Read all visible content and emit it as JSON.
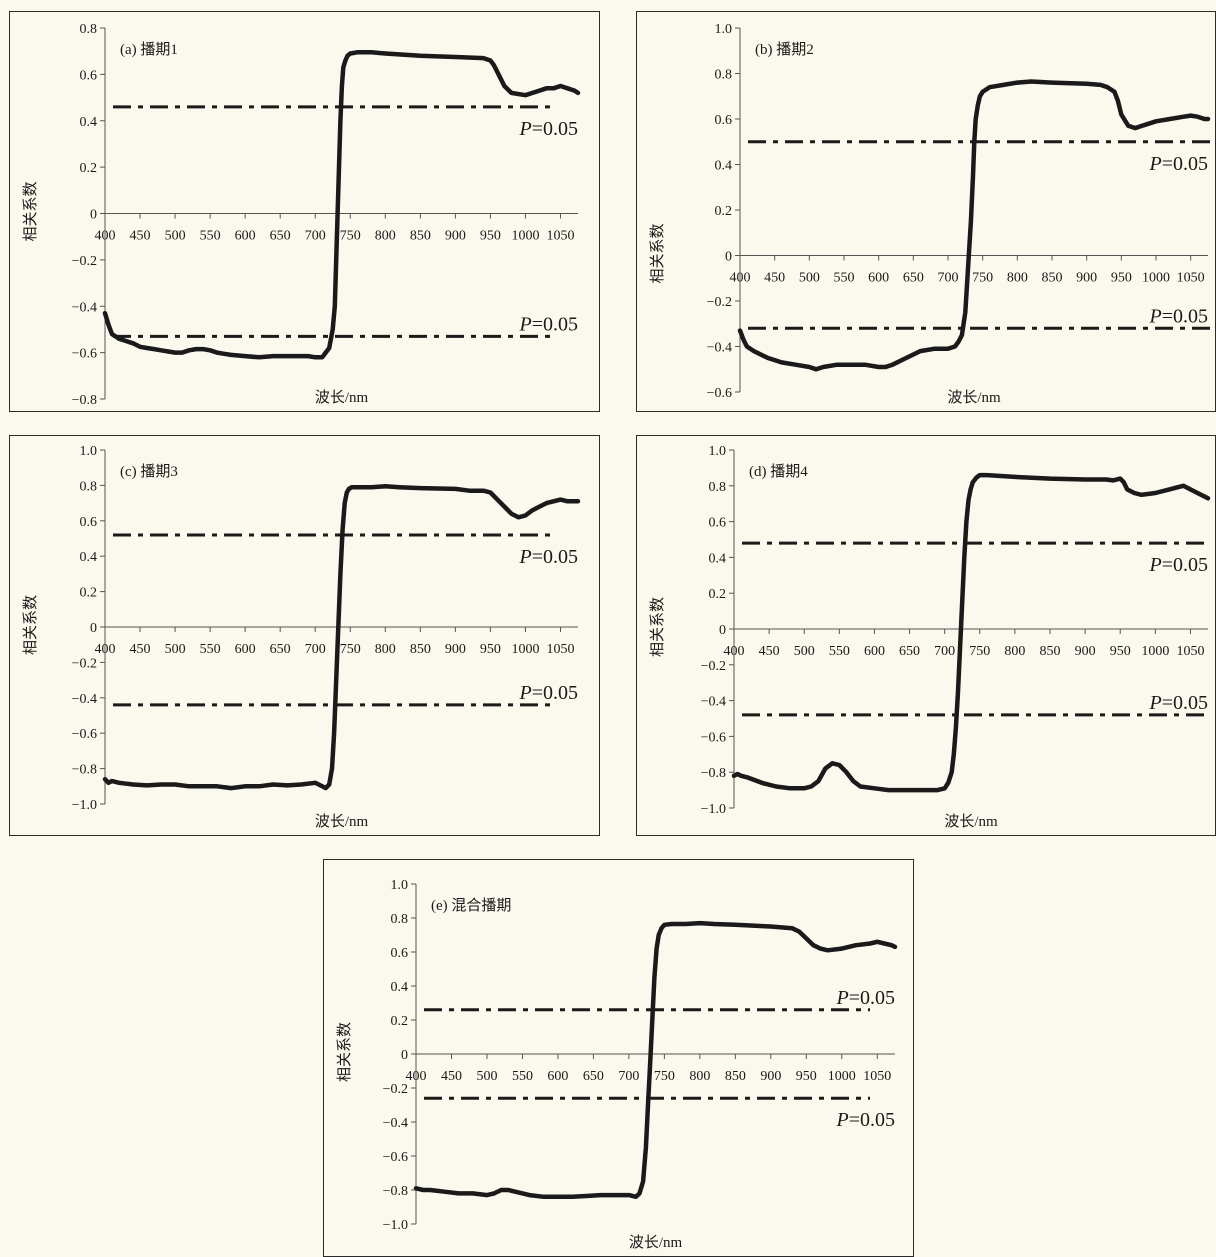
{
  "colors": {
    "background": "#fbf8ed",
    "panel_fill": "#fbf8ed",
    "frame": "#2b2b2b",
    "curve": "#1a1a1a",
    "axis": "#555555"
  },
  "chart_data": [
    {
      "type": "line",
      "panel_label": "(a) 播期1",
      "xlabel": "波长/nm",
      "ylabel": "相关系数",
      "xlim": [
        400,
        1075
      ],
      "ylim": [
        -0.8,
        0.8
      ],
      "x_ticks": [
        "400",
        "450",
        "500",
        "550",
        "600",
        "650",
        "700",
        "750",
        "800",
        "850",
        "900",
        "950",
        "1000",
        "1050"
      ],
      "y_ticks": [
        "0.8",
        "0.6",
        "0.4",
        "0.2",
        "0",
        "−0.2",
        "−0.4",
        "−0.6",
        "−0.8"
      ],
      "y_tick_values": [
        0.8,
        0.6,
        0.4,
        0.2,
        0,
        -0.2,
        -0.4,
        -0.6,
        -0.8
      ],
      "grid": false,
      "series": [
        {
          "x": [
            400,
            405,
            410,
            415,
            420,
            430,
            440,
            450,
            460,
            470,
            480,
            490,
            500,
            510,
            520,
            530,
            540,
            550,
            560,
            570,
            580,
            600,
            620,
            640,
            660,
            680,
            690,
            700,
            710,
            715,
            720,
            725,
            728,
            730,
            732,
            734,
            736,
            738,
            740,
            743,
            746,
            750,
            760,
            780,
            800,
            850,
            900,
            940,
            950,
            955,
            960,
            970,
            980,
            1000,
            1010,
            1020,
            1030,
            1040,
            1050,
            1060,
            1070,
            1075
          ],
          "y": [
            -0.43,
            -0.48,
            -0.52,
            -0.53,
            -0.54,
            -0.55,
            -0.56,
            -0.575,
            -0.58,
            -0.585,
            -0.59,
            -0.595,
            -0.6,
            -0.6,
            -0.59,
            -0.585,
            -0.585,
            -0.59,
            -0.6,
            -0.605,
            -0.61,
            -0.615,
            -0.62,
            -0.615,
            -0.615,
            -0.615,
            -0.615,
            -0.62,
            -0.62,
            -0.6,
            -0.58,
            -0.5,
            -0.4,
            -0.2,
            0.0,
            0.2,
            0.4,
            0.55,
            0.63,
            0.66,
            0.68,
            0.69,
            0.695,
            0.695,
            0.69,
            0.68,
            0.675,
            0.67,
            0.66,
            0.64,
            0.61,
            0.55,
            0.52,
            0.51,
            0.52,
            0.53,
            0.54,
            0.54,
            0.55,
            0.54,
            0.53,
            0.52
          ]
        }
      ],
      "thresholds": [
        {
          "value": 0.46,
          "label_prefix": "P",
          "label_suffix": "=0.05",
          "label_pos": "below"
        },
        {
          "value": -0.53,
          "label_prefix": "P",
          "label_suffix": "=0.05",
          "label_pos": "above"
        }
      ]
    },
    {
      "type": "line",
      "panel_label": "(b) 播期2",
      "xlabel": "波长/nm",
      "ylabel": "相关系数",
      "xlim": [
        400,
        1075
      ],
      "ylim": [
        -0.6,
        1.0
      ],
      "x_ticks": [
        "400",
        "450",
        "500",
        "550",
        "600",
        "650",
        "700",
        "750",
        "800",
        "850",
        "900",
        "950",
        "1000",
        "1050"
      ],
      "y_ticks": [
        "1.0",
        "0.8",
        "0.6",
        "0.4",
        "0.2",
        "0",
        "−0.2",
        "−0.4",
        "−0.6"
      ],
      "y_tick_values": [
        1.0,
        0.8,
        0.6,
        0.4,
        0.2,
        0,
        -0.2,
        -0.4,
        -0.6
      ],
      "grid": false,
      "series": [
        {
          "x": [
            400,
            405,
            410,
            420,
            440,
            460,
            480,
            500,
            510,
            520,
            540,
            560,
            580,
            600,
            610,
            620,
            640,
            660,
            680,
            700,
            710,
            715,
            720,
            725,
            728,
            730,
            733,
            736,
            738,
            740,
            743,
            746,
            750,
            760,
            780,
            800,
            820,
            850,
            900,
            920,
            930,
            940,
            945,
            950,
            960,
            970,
            980,
            1000,
            1020,
            1040,
            1050,
            1060,
            1070,
            1075
          ],
          "y": [
            -0.33,
            -0.37,
            -0.4,
            -0.42,
            -0.45,
            -0.47,
            -0.48,
            -0.49,
            -0.5,
            -0.49,
            -0.48,
            -0.48,
            -0.48,
            -0.49,
            -0.49,
            -0.48,
            -0.45,
            -0.42,
            -0.41,
            -0.41,
            -0.4,
            -0.38,
            -0.35,
            -0.25,
            -0.1,
            0.0,
            0.15,
            0.35,
            0.5,
            0.6,
            0.66,
            0.7,
            0.72,
            0.74,
            0.75,
            0.76,
            0.765,
            0.76,
            0.755,
            0.75,
            0.74,
            0.72,
            0.68,
            0.62,
            0.57,
            0.56,
            0.57,
            0.59,
            0.6,
            0.61,
            0.615,
            0.61,
            0.6,
            0.6
          ]
        }
      ],
      "thresholds": [
        {
          "value": 0.5,
          "label_prefix": "P",
          "label_suffix": "=0.05",
          "label_pos": "below"
        },
        {
          "value": -0.32,
          "label_prefix": "P",
          "label_suffix": "=0.05",
          "label_pos": "above"
        }
      ]
    },
    {
      "type": "line",
      "panel_label": "(c) 播期3",
      "xlabel": "波长/nm",
      "ylabel": "相关系数",
      "xlim": [
        400,
        1075
      ],
      "ylim": [
        -1.0,
        1.0
      ],
      "x_ticks": [
        "400",
        "450",
        "500",
        "550",
        "600",
        "650",
        "700",
        "750",
        "800",
        "850",
        "900",
        "950",
        "1000",
        "1050"
      ],
      "y_ticks": [
        "1.0",
        "0.8",
        "0.6",
        "0.4",
        "0.2",
        "0",
        "−0.2",
        "−0.4",
        "−0.6",
        "−0.8",
        "−1.0"
      ],
      "y_tick_values": [
        1.0,
        0.8,
        0.6,
        0.4,
        0.2,
        0,
        -0.2,
        -0.4,
        -0.6,
        -0.8,
        -1.0
      ],
      "grid": false,
      "series": [
        {
          "x": [
            400,
            405,
            410,
            420,
            440,
            460,
            480,
            500,
            520,
            540,
            560,
            580,
            600,
            620,
            640,
            660,
            680,
            700,
            710,
            715,
            720,
            724,
            727,
            730,
            733,
            736,
            739,
            742,
            745,
            748,
            752,
            760,
            780,
            800,
            820,
            850,
            900,
            920,
            940,
            950,
            960,
            970,
            980,
            990,
            1000,
            1010,
            1020,
            1030,
            1040,
            1050,
            1060,
            1070,
            1075
          ],
          "y": [
            -0.86,
            -0.88,
            -0.87,
            -0.88,
            -0.89,
            -0.895,
            -0.89,
            -0.89,
            -0.9,
            -0.9,
            -0.9,
            -0.91,
            -0.9,
            -0.9,
            -0.89,
            -0.895,
            -0.89,
            -0.88,
            -0.9,
            -0.91,
            -0.89,
            -0.8,
            -0.6,
            -0.3,
            0.0,
            0.3,
            0.55,
            0.7,
            0.76,
            0.78,
            0.79,
            0.79,
            0.79,
            0.795,
            0.79,
            0.785,
            0.78,
            0.77,
            0.77,
            0.76,
            0.72,
            0.68,
            0.64,
            0.62,
            0.63,
            0.66,
            0.68,
            0.7,
            0.71,
            0.72,
            0.71,
            0.71,
            0.71
          ]
        }
      ],
      "thresholds": [
        {
          "value": 0.52,
          "label_prefix": "P",
          "label_suffix": "=0.05",
          "label_pos": "below"
        },
        {
          "value": -0.44,
          "label_prefix": "P",
          "label_suffix": "=0.05",
          "label_pos": "above"
        }
      ]
    },
    {
      "type": "line",
      "panel_label": "(d) 播期4",
      "xlabel": "波长/nm",
      "ylabel": "相关系数",
      "xlim": [
        400,
        1075
      ],
      "ylim": [
        -1.0,
        1.0
      ],
      "x_ticks": [
        "400",
        "450",
        "500",
        "550",
        "600",
        "650",
        "700",
        "750",
        "800",
        "850",
        "900",
        "950",
        "1000",
        "1050"
      ],
      "y_ticks": [
        "1.0",
        "0.8",
        "0.6",
        "0.4",
        "0.2",
        "0",
        "−0.2",
        "−0.4",
        "−0.6",
        "−0.8",
        "−1.0"
      ],
      "y_tick_values": [
        1.0,
        0.8,
        0.6,
        0.4,
        0.2,
        0,
        -0.2,
        -0.4,
        -0.6,
        -0.8,
        -1.0
      ],
      "grid": false,
      "series": [
        {
          "x": [
            400,
            405,
            410,
            420,
            440,
            460,
            480,
            500,
            510,
            520,
            530,
            540,
            550,
            560,
            570,
            580,
            600,
            620,
            640,
            660,
            680,
            690,
            700,
            705,
            710,
            713,
            716,
            719,
            722,
            725,
            728,
            731,
            734,
            737,
            740,
            745,
            750,
            760,
            780,
            800,
            850,
            900,
            930,
            940,
            950,
            955,
            960,
            970,
            980,
            1000,
            1020,
            1030,
            1040,
            1050,
            1060,
            1070,
            1075
          ],
          "y": [
            -0.82,
            -0.81,
            -0.82,
            -0.83,
            -0.86,
            -0.88,
            -0.89,
            -0.89,
            -0.88,
            -0.85,
            -0.78,
            -0.75,
            -0.76,
            -0.8,
            -0.85,
            -0.88,
            -0.89,
            -0.9,
            -0.9,
            -0.9,
            -0.9,
            -0.9,
            -0.89,
            -0.86,
            -0.8,
            -0.7,
            -0.55,
            -0.35,
            -0.1,
            0.15,
            0.4,
            0.6,
            0.72,
            0.78,
            0.82,
            0.845,
            0.86,
            0.86,
            0.855,
            0.85,
            0.84,
            0.835,
            0.835,
            0.83,
            0.84,
            0.82,
            0.78,
            0.76,
            0.75,
            0.76,
            0.78,
            0.79,
            0.8,
            0.78,
            0.76,
            0.74,
            0.73
          ]
        }
      ],
      "thresholds": [
        {
          "value": 0.48,
          "label_prefix": "P",
          "label_suffix": "=0.05",
          "label_pos": "below"
        },
        {
          "value": -0.48,
          "label_prefix": "P",
          "label_suffix": "=0.05",
          "label_pos": "above"
        }
      ]
    },
    {
      "type": "line",
      "panel_label": "(e) 混合播期",
      "xlabel": "波长/nm",
      "ylabel": "相关系数",
      "xlim": [
        400,
        1075
      ],
      "ylim": [
        -1.0,
        1.0
      ],
      "x_ticks": [
        "400",
        "450",
        "500",
        "550",
        "600",
        "650",
        "700",
        "750",
        "800",
        "850",
        "900",
        "950",
        "1000",
        "1050"
      ],
      "y_ticks": [
        "1.0",
        "0.8",
        "0.6",
        "0.4",
        "0.2",
        "0",
        "−0.2",
        "−0.4",
        "−0.6",
        "−0.8",
        "−1.0"
      ],
      "y_tick_values": [
        1.0,
        0.8,
        0.6,
        0.4,
        0.2,
        0,
        -0.2,
        -0.4,
        -0.6,
        -0.8,
        -1.0
      ],
      "grid": false,
      "series": [
        {
          "x": [
            400,
            410,
            420,
            440,
            460,
            480,
            500,
            510,
            520,
            530,
            540,
            560,
            580,
            600,
            620,
            640,
            660,
            680,
            700,
            710,
            715,
            720,
            724,
            727,
            730,
            733,
            736,
            739,
            742,
            746,
            750,
            760,
            780,
            800,
            820,
            850,
            900,
            930,
            940,
            950,
            960,
            970,
            980,
            1000,
            1020,
            1040,
            1050,
            1060,
            1070,
            1075
          ],
          "y": [
            -0.79,
            -0.8,
            -0.8,
            -0.81,
            -0.82,
            -0.82,
            -0.83,
            -0.82,
            -0.8,
            -0.8,
            -0.81,
            -0.83,
            -0.84,
            -0.84,
            -0.84,
            -0.835,
            -0.83,
            -0.83,
            -0.83,
            -0.84,
            -0.82,
            -0.75,
            -0.55,
            -0.3,
            -0.05,
            0.2,
            0.45,
            0.62,
            0.7,
            0.74,
            0.76,
            0.765,
            0.765,
            0.77,
            0.765,
            0.76,
            0.75,
            0.74,
            0.72,
            0.68,
            0.64,
            0.62,
            0.61,
            0.62,
            0.64,
            0.65,
            0.66,
            0.65,
            0.64,
            0.63
          ]
        }
      ],
      "thresholds": [
        {
          "value": 0.26,
          "label_prefix": "P",
          "label_suffix": "=0.05",
          "label_pos": "above"
        },
        {
          "value": -0.26,
          "label_prefix": "P",
          "label_suffix": "=0.05",
          "label_pos": "below"
        }
      ]
    }
  ]
}
